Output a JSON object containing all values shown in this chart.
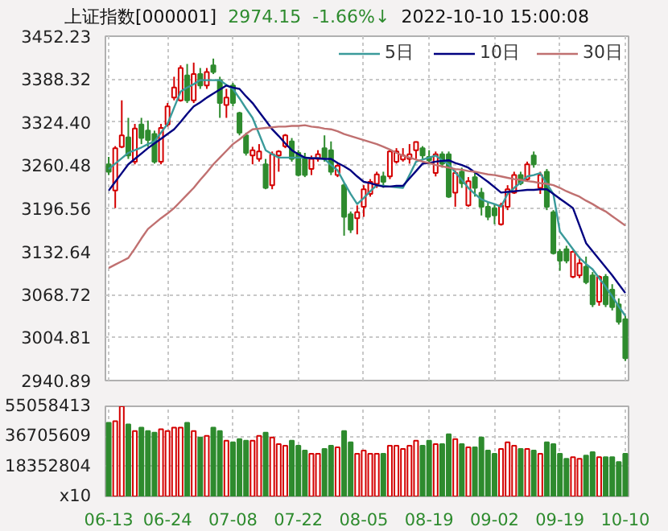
{
  "chart_data": [
    {
      "type": "candlestick",
      "title": "上证指数[000001]",
      "annotations": [
        "2974.15",
        "-1.66%↓",
        "2022-10-10 15:00:08"
      ],
      "ohlc": [
        [
          3262,
          3273,
          3246,
          3251
        ],
        [
          3223,
          3289,
          3197,
          3286
        ],
        [
          3288,
          3357,
          3286,
          3305
        ],
        [
          3302,
          3331,
          3270,
          3275
        ],
        [
          3266,
          3322,
          3262,
          3315
        ],
        [
          3321,
          3331,
          3292,
          3301
        ],
        [
          3312,
          3327,
          3288,
          3298
        ],
        [
          3307,
          3312,
          3263,
          3266
        ],
        [
          3266,
          3322,
          3262,
          3316
        ],
        [
          3321,
          3353,
          3318,
          3348
        ],
        [
          3361,
          3392,
          3357,
          3376
        ],
        [
          3357,
          3409,
          3355,
          3405
        ],
        [
          3394,
          3411,
          3353,
          3357
        ],
        [
          3357,
          3413,
          3353,
          3396
        ],
        [
          3396,
          3405,
          3374,
          3379
        ],
        [
          3379,
          3405,
          3374,
          3399
        ],
        [
          3409,
          3419,
          3396,
          3399
        ],
        [
          3387,
          3392,
          3331,
          3353
        ],
        [
          3350,
          3374,
          3331,
          3361
        ],
        [
          3379,
          3383,
          3348,
          3353
        ],
        [
          3338,
          3340,
          3305,
          3309
        ],
        [
          3305,
          3309,
          3275,
          3279
        ],
        [
          3275,
          3288,
          3262,
          3283
        ],
        [
          3270,
          3292,
          3266,
          3281
        ],
        [
          3262,
          3270,
          3225,
          3227
        ],
        [
          3231,
          3281,
          3225,
          3277
        ],
        [
          3275,
          3283,
          3251,
          3281
        ],
        [
          3289,
          3307,
          3286,
          3305
        ],
        [
          3296,
          3301,
          3266,
          3270
        ],
        [
          3279,
          3283,
          3244,
          3246
        ],
        [
          3272,
          3279,
          3243,
          3246
        ],
        [
          3255,
          3275,
          3246,
          3270
        ],
        [
          3270,
          3283,
          3266,
          3277
        ],
        [
          3286,
          3305,
          3266,
          3272
        ],
        [
          3283,
          3296,
          3246,
          3251
        ],
        [
          3246,
          3263,
          3243,
          3260
        ],
        [
          3231,
          3234,
          3156,
          3184
        ],
        [
          3188,
          3192,
          3160,
          3165
        ],
        [
          3182,
          3201,
          3158,
          3191
        ],
        [
          3199,
          3231,
          3184,
          3225
        ],
        [
          3218,
          3240,
          3214,
          3236
        ],
        [
          3233,
          3251,
          3227,
          3247
        ],
        [
          3244,
          3251,
          3227,
          3236
        ],
        [
          3244,
          3283,
          3240,
          3281
        ],
        [
          3266,
          3286,
          3263,
          3281
        ],
        [
          3269,
          3286,
          3266,
          3275
        ],
        [
          3270,
          3292,
          3263,
          3277
        ],
        [
          3283,
          3296,
          3270,
          3295
        ],
        [
          3286,
          3289,
          3270,
          3275
        ],
        [
          3273,
          3283,
          3262,
          3268
        ],
        [
          3249,
          3281,
          3244,
          3277
        ],
        [
          3277,
          3281,
          3257,
          3263
        ],
        [
          3277,
          3281,
          3212,
          3214
        ],
        [
          3220,
          3253,
          3199,
          3249
        ],
        [
          3251,
          3257,
          3227,
          3234
        ],
        [
          3201,
          3243,
          3199,
          3237
        ],
        [
          3243,
          3249,
          3214,
          3227
        ],
        [
          3220,
          3227,
          3186,
          3199
        ],
        [
          3199,
          3205,
          3179,
          3184
        ],
        [
          3197,
          3203,
          3173,
          3186
        ],
        [
          3173,
          3205,
          3171,
          3201
        ],
        [
          3199,
          3231,
          3194,
          3225
        ],
        [
          3220,
          3251,
          3218,
          3246
        ],
        [
          3246,
          3251,
          3231,
          3234
        ],
        [
          3240,
          3266,
          3236,
          3262
        ],
        [
          3275,
          3281,
          3257,
          3262
        ],
        [
          3227,
          3251,
          3218,
          3246
        ],
        [
          3251,
          3255,
          3194,
          3199
        ],
        [
          3191,
          3194,
          3128,
          3130
        ],
        [
          3132,
          3136,
          3104,
          3119
        ],
        [
          3136,
          3141,
          3115,
          3119
        ],
        [
          3095,
          3134,
          3093,
          3132
        ],
        [
          3097,
          3125,
          3093,
          3115
        ],
        [
          3110,
          3125,
          3084,
          3087
        ],
        [
          3097,
          3102,
          3050,
          3054
        ],
        [
          3058,
          3097,
          3052,
          3095
        ],
        [
          3095,
          3099,
          3050,
          3054
        ],
        [
          3076,
          3084,
          3045,
          3050
        ],
        [
          3054,
          3063,
          3024,
          3028
        ],
        [
          3032,
          3037,
          2970,
          2974
        ]
      ],
      "colors": [
        "#2e8b2e",
        "#d40000",
        "#d40000",
        "#2e8b2e",
        "#d40000",
        "#2e8b2e",
        "#2e8b2e",
        "#2e8b2e",
        "#d40000",
        "#d40000",
        "#d40000",
        "#d40000",
        "#2e8b2e",
        "#d40000",
        "#2e8b2e",
        "#d40000",
        "#2e8b2e",
        "#2e8b2e",
        "#d40000",
        "#2e8b2e",
        "#2e8b2e",
        "#2e8b2e",
        "#d40000",
        "#d40000",
        "#2e8b2e",
        "#d40000",
        "#d40000",
        "#d40000",
        "#2e8b2e",
        "#2e8b2e",
        "#2e8b2e",
        "#d40000",
        "#d40000",
        "#2e8b2e",
        "#2e8b2e",
        "#d40000",
        "#2e8b2e",
        "#2e8b2e",
        "#d40000",
        "#d40000",
        "#d40000",
        "#d40000",
        "#2e8b2e",
        "#d40000",
        "#d40000",
        "#d40000",
        "#d40000",
        "#d40000",
        "#2e8b2e",
        "#2e8b2e",
        "#d40000",
        "#2e8b2e",
        "#2e8b2e",
        "#d40000",
        "#2e8b2e",
        "#d40000",
        "#2e8b2e",
        "#2e8b2e",
        "#2e8b2e",
        "#2e8b2e",
        "#d40000",
        "#d40000",
        "#d40000",
        "#2e8b2e",
        "#d40000",
        "#2e8b2e",
        "#d40000",
        "#2e8b2e",
        "#2e8b2e",
        "#2e8b2e",
        "#2e8b2e",
        "#d40000",
        "#d40000",
        "#2e8b2e",
        "#2e8b2e",
        "#d40000",
        "#2e8b2e",
        "#2e8b2e",
        "#2e8b2e",
        "#2e8b2e"
      ],
      "series": [
        {
          "name": "5日",
          "type": "line",
          "color": "#3a9a9a",
          "values": [
            3255,
            3263,
            3271,
            3279,
            3283,
            3287,
            3292,
            3296,
            3309,
            3322,
            3346,
            3370,
            3376,
            3381,
            3387,
            3387,
            3387,
            3387,
            3380,
            3374,
            3360,
            3345,
            3331,
            3307,
            3283,
            3277,
            3272,
            3272,
            3272,
            3272,
            3272,
            3271,
            3271,
            3270,
            3261,
            3253,
            3235,
            3218,
            3203,
            3212,
            3222,
            3231,
            3230,
            3229,
            3228,
            3227,
            3246,
            3266,
            3269,
            3272,
            3275,
            3268,
            3262,
            3250,
            3239,
            3227,
            3218,
            3210,
            3206,
            3203,
            3199,
            3218,
            3227,
            3235,
            3244,
            3246,
            3249,
            3233,
            3218,
            3162,
            3149,
            3136,
            3123,
            3114,
            3106,
            3093,
            3080,
            3066,
            3051,
            3037
          ]
        },
        {
          "name": "10日",
          "type": "line",
          "color": "#000080",
          "values": [
            3223,
            3236,
            3249,
            3262,
            3270,
            3278,
            3286,
            3293,
            3300,
            3307,
            3314,
            3325,
            3337,
            3348,
            3354,
            3361,
            3367,
            3373,
            3379,
            3376,
            3374,
            3363,
            3353,
            3340,
            3327,
            3314,
            3304,
            3293,
            3283,
            3277,
            3272,
            3271,
            3271,
            3270,
            3270,
            3264,
            3259,
            3253,
            3244,
            3236,
            3234,
            3231,
            3229,
            3229,
            3230,
            3230,
            3241,
            3252,
            3263,
            3264,
            3266,
            3267,
            3268,
            3264,
            3261,
            3257,
            3250,
            3243,
            3236,
            3228,
            3220,
            3221,
            3222,
            3223,
            3224,
            3224,
            3225,
            3225,
            3218,
            3211,
            3204,
            3197,
            3171,
            3145,
            3133,
            3121,
            3109,
            3097,
            3084,
            3071
          ]
        },
        {
          "name": "30日",
          "type": "line",
          "color": "#c07070",
          "values": [
            3108,
            3113,
            3118,
            3123,
            3137,
            3152,
            3166,
            3174,
            3182,
            3189,
            3197,
            3207,
            3217,
            3227,
            3239,
            3250,
            3262,
            3272,
            3282,
            3292,
            3299,
            3307,
            3314,
            3315,
            3316,
            3317,
            3318,
            3318,
            3319,
            3319,
            3320,
            3318,
            3317,
            3315,
            3314,
            3311,
            3307,
            3304,
            3301,
            3298,
            3295,
            3292,
            3288,
            3284,
            3279,
            3275,
            3272,
            3269,
            3266,
            3264,
            3261,
            3259,
            3257,
            3255,
            3254,
            3252,
            3251,
            3249,
            3247,
            3246,
            3244,
            3242,
            3240,
            3239,
            3237,
            3236,
            3234,
            3233,
            3231,
            3227,
            3222,
            3218,
            3214,
            3208,
            3203,
            3197,
            3192,
            3185,
            3178,
            3171
          ]
        }
      ],
      "ylim": [
        2940.89,
        3452.23
      ],
      "yticks": [
        2940.89,
        3004.81,
        3068.72,
        3132.64,
        3196.56,
        3260.48,
        {
          "value": 3324.4,
          "label": "3324.40"
        },
        3388.32,
        3452.23
      ],
      "tick_labels": "y",
      "grid": true,
      "legend": "top right"
    },
    {
      "type": "bar",
      "categories": [
        "06-13",
        null,
        null,
        null,
        null,
        null,
        null,
        null,
        null,
        "06-24",
        null,
        null,
        null,
        null,
        null,
        null,
        null,
        null,
        null,
        "07-08",
        null,
        null,
        null,
        null,
        null,
        null,
        null,
        null,
        null,
        "07-22",
        null,
        null,
        null,
        null,
        null,
        null,
        null,
        null,
        null,
        "08-05",
        null,
        null,
        null,
        null,
        null,
        null,
        null,
        null,
        null,
        "08-19",
        null,
        null,
        null,
        null,
        null,
        null,
        null,
        null,
        null,
        "09-02",
        null,
        null,
        null,
        null,
        null,
        null,
        null,
        null,
        null,
        "09-19",
        null,
        null,
        null,
        null,
        null,
        null,
        null,
        null,
        null,
        "10-10"
      ],
      "values": [
        45000000,
        46000000,
        55000000,
        44000000,
        40000000,
        42000000,
        40000000,
        39000000,
        41000000,
        40000000,
        42000000,
        42000000,
        45000000,
        40000000,
        36000000,
        37000000,
        42000000,
        40000000,
        34000000,
        33000000,
        35000000,
        34000000,
        34000000,
        37000000,
        39000000,
        36000000,
        32000000,
        31000000,
        34000000,
        31000000,
        28000000,
        26000000,
        26000000,
        29000000,
        31000000,
        30000000,
        40000000,
        33000000,
        26000000,
        28000000,
        26000000,
        26000000,
        26000000,
        31000000,
        31000000,
        29000000,
        31000000,
        34000000,
        31000000,
        34000000,
        32000000,
        32000000,
        38000000,
        35000000,
        32000000,
        30000000,
        30000000,
        36000000,
        28000000,
        26000000,
        29000000,
        33000000,
        31000000,
        29000000,
        29000000,
        28000000,
        26000000,
        33000000,
        32000000,
        26000000,
        23000000,
        24000000,
        23000000,
        25000000,
        27000000,
        24000000,
        24000000,
        24000000,
        21000000,
        26000000
      ],
      "colors": [
        "#2e8b2e",
        "#d40000",
        "#d40000",
        "#2e8b2e",
        "#d40000",
        "#2e8b2e",
        "#2e8b2e",
        "#2e8b2e",
        "#d40000",
        "#d40000",
        "#d40000",
        "#d40000",
        "#2e8b2e",
        "#d40000",
        "#2e8b2e",
        "#d40000",
        "#2e8b2e",
        "#2e8b2e",
        "#d40000",
        "#2e8b2e",
        "#2e8b2e",
        "#2e8b2e",
        "#d40000",
        "#d40000",
        "#2e8b2e",
        "#d40000",
        "#d40000",
        "#d40000",
        "#2e8b2e",
        "#2e8b2e",
        "#2e8b2e",
        "#d40000",
        "#d40000",
        "#2e8b2e",
        "#2e8b2e",
        "#d40000",
        "#2e8b2e",
        "#2e8b2e",
        "#d40000",
        "#d40000",
        "#d40000",
        "#d40000",
        "#2e8b2e",
        "#d40000",
        "#d40000",
        "#d40000",
        "#d40000",
        "#d40000",
        "#2e8b2e",
        "#2e8b2e",
        "#d40000",
        "#2e8b2e",
        "#2e8b2e",
        "#d40000",
        "#2e8b2e",
        "#d40000",
        "#2e8b2e",
        "#2e8b2e",
        "#2e8b2e",
        "#2e8b2e",
        "#d40000",
        "#d40000",
        "#d40000",
        "#2e8b2e",
        "#d40000",
        "#2e8b2e",
        "#d40000",
        "#2e8b2e",
        "#2e8b2e",
        "#2e8b2e",
        "#2e8b2e",
        "#d40000",
        "#d40000",
        "#2e8b2e",
        "#2e8b2e",
        "#d40000",
        "#2e8b2e",
        "#2e8b2e",
        "#2e8b2e",
        "#2e8b2e"
      ],
      "ylim": [
        0,
        55058413
      ],
      "yticks": [
        {
          "value": 0,
          "label": "x10"
        },
        18352804,
        36705609,
        55058413
      ],
      "grid": true
    }
  ]
}
